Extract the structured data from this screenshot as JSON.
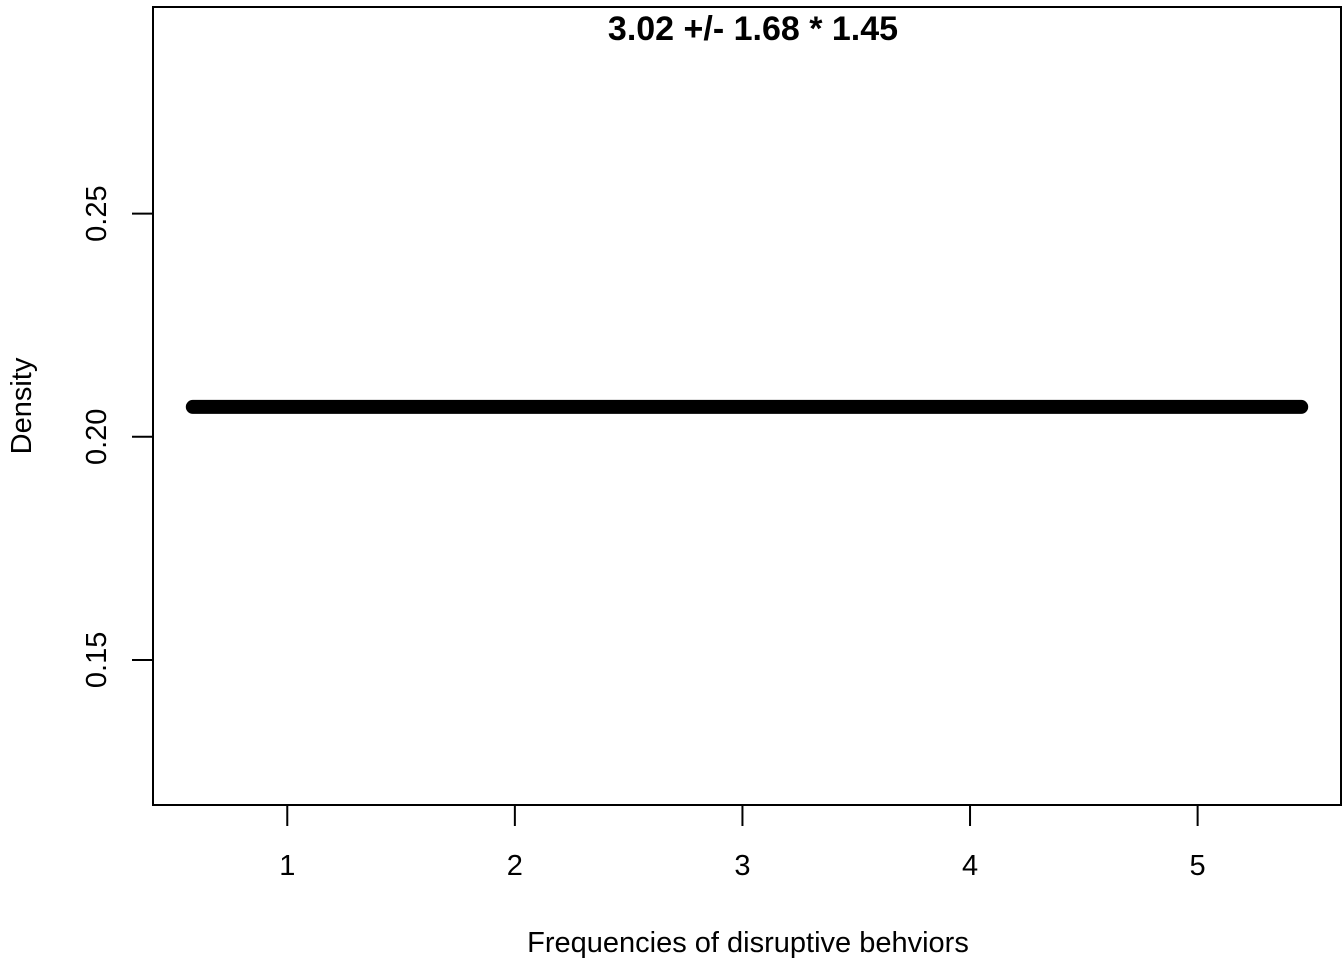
{
  "chart_data": {
    "type": "line",
    "title": "3.02 +/- 1.68 * 1.45",
    "xlabel": "Frequencies of disruptive behviors",
    "ylabel": "Density",
    "x_ticks": [
      1,
      2,
      3,
      4,
      5
    ],
    "x_tick_labels": [
      "1",
      "2",
      "3",
      "4",
      "5"
    ],
    "y_ticks": [
      0.15,
      0.2,
      0.25
    ],
    "y_tick_labels": [
      "0.15",
      "0.20",
      "0.25"
    ],
    "xlim": [
      0.41,
      5.63
    ],
    "ylim": [
      0.1175,
      0.2963
    ],
    "grid": false,
    "legend": "none",
    "series": [
      {
        "x": [
          0.585,
          5.455
        ],
        "y": [
          0.2067,
          0.2067
        ],
        "color": "#000000"
      }
    ]
  }
}
